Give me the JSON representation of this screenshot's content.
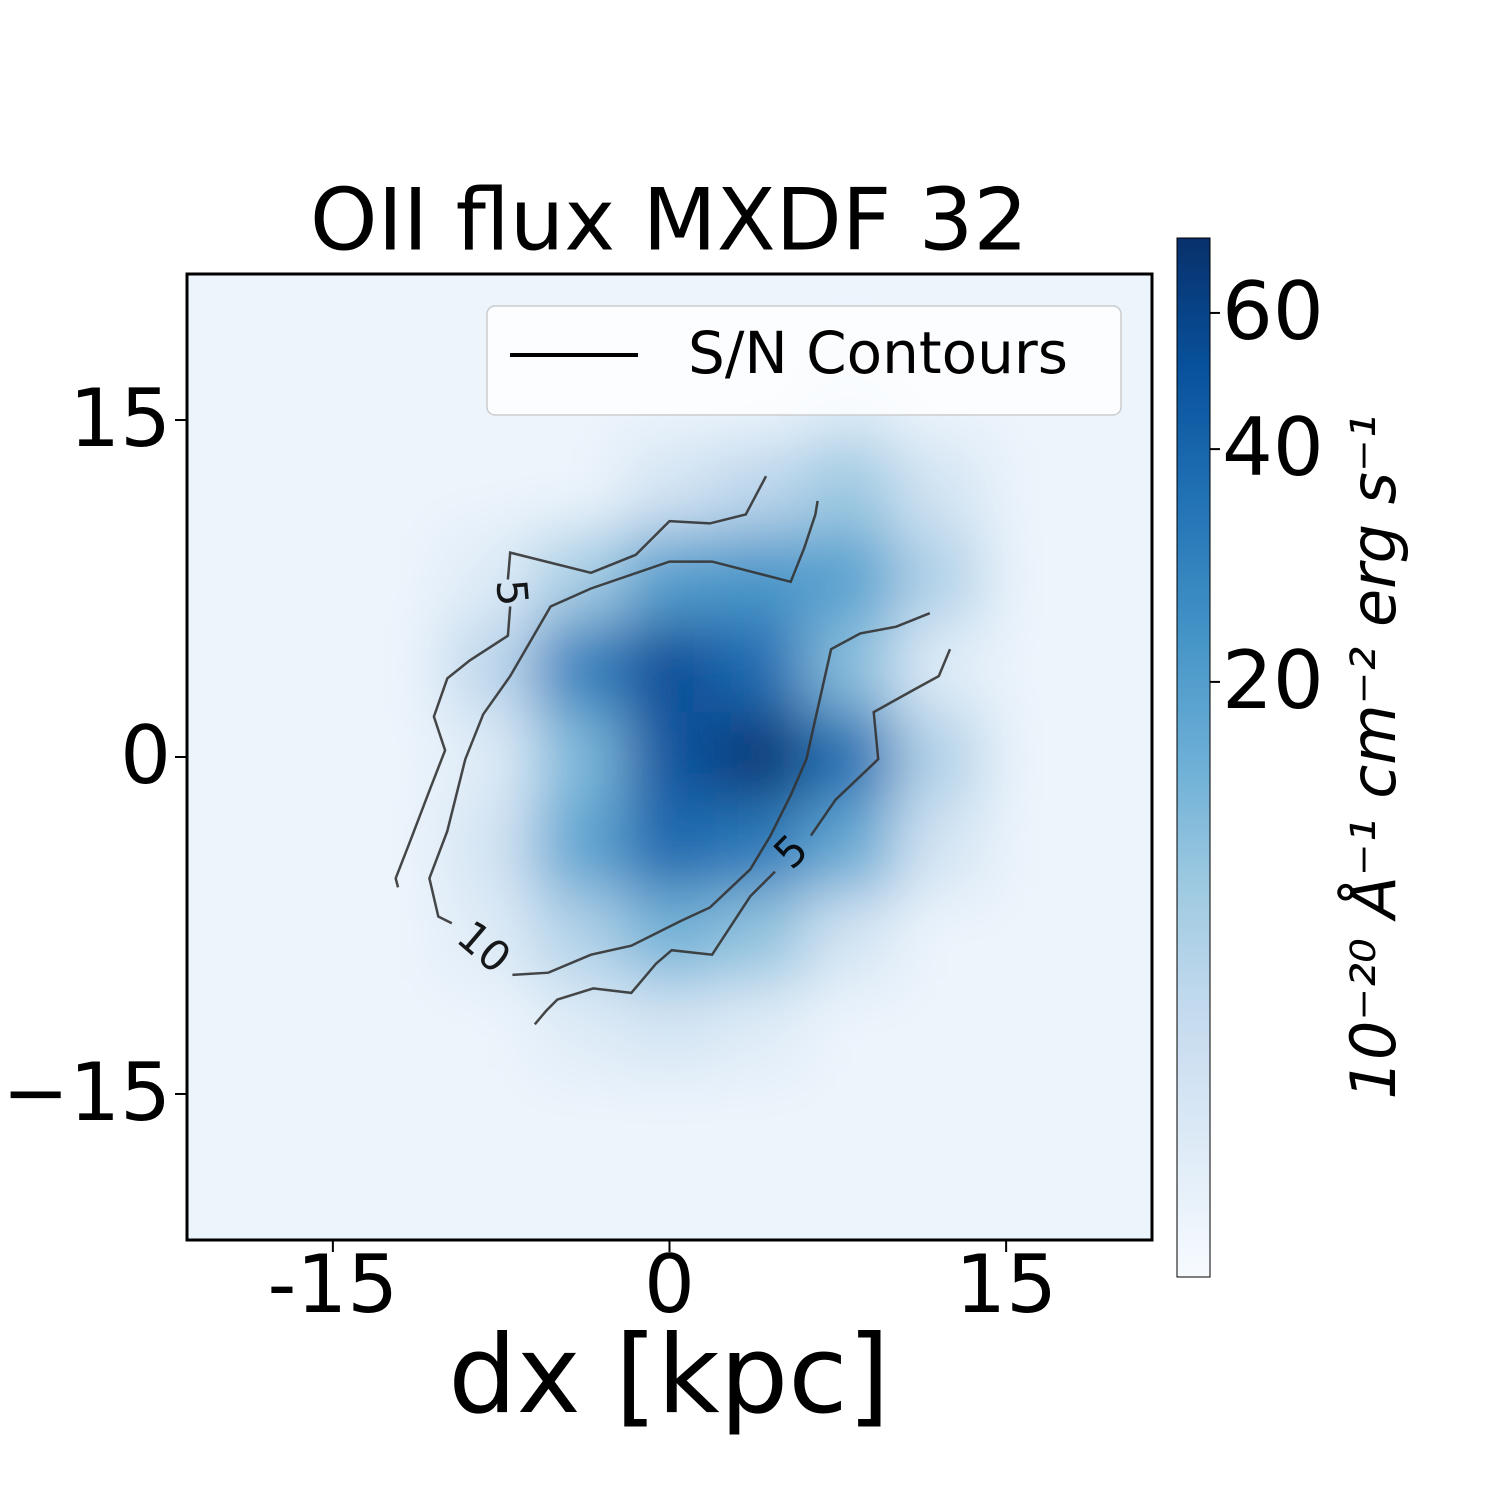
{
  "chart_data": {
    "type": "heatmap",
    "title": "OII flux MXDF 32",
    "x_label": "dx [kpc]",
    "colorbar_label": "10⁻²⁰ Å⁻¹ cm⁻² erg s⁻¹",
    "x": [
      -20,
      -16,
      -12,
      -8,
      -4,
      0,
      4,
      8,
      12,
      16,
      20
    ],
    "y": [
      20,
      16,
      12,
      8,
      4,
      0,
      -4,
      -8,
      -12,
      -16,
      -20
    ],
    "z": [
      [
        4,
        4,
        4,
        4,
        4,
        4,
        4,
        4,
        4,
        4,
        4
      ],
      [
        4,
        4,
        4,
        4,
        4,
        4,
        4,
        5,
        4,
        4,
        4
      ],
      [
        4,
        4,
        4,
        4,
        4,
        6,
        8,
        11,
        6,
        4,
        4
      ],
      [
        4,
        4,
        4,
        5,
        10,
        20,
        22,
        19,
        9,
        4,
        4
      ],
      [
        4,
        4,
        4,
        8,
        29,
        53,
        37,
        13,
        5,
        4,
        4
      ],
      [
        4,
        4,
        4,
        5,
        14,
        49,
        69,
        36,
        9,
        4,
        4
      ],
      [
        4,
        4,
        4,
        6,
        18,
        38,
        31,
        17,
        6,
        4,
        4
      ],
      [
        4,
        4,
        4,
        5,
        9,
        15,
        12,
        6,
        4,
        4,
        4
      ],
      [
        4,
        4,
        4,
        4,
        5,
        6,
        5,
        4,
        4,
        4,
        4
      ],
      [
        4,
        4,
        4,
        4,
        4,
        4,
        4,
        4,
        4,
        4,
        4
      ],
      [
        4,
        4,
        4,
        4,
        4,
        4,
        4,
        4,
        4,
        4,
        4
      ]
    ],
    "xlim": [
      -21.5,
      21.5
    ],
    "ylim": [
      -21.5,
      21.5
    ],
    "xticks": [
      -15,
      0,
      15
    ],
    "yticks": [
      15,
      0,
      {
        "value": -15,
        "label": "−15"
      }
    ],
    "colormap": [
      "#f7fbff",
      "#deebf7",
      "#c6dbef",
      "#9ecae1",
      "#6baed6",
      "#4292c6",
      "#2171b5",
      "#08519c",
      "#08306b"
    ],
    "color_scale": "log",
    "clim": [
      3.4,
      75
    ],
    "cticks": [
      20,
      40,
      60
    ],
    "contour_color": "#333333",
    "contours": [
      {
        "level": 5,
        "x": [
          4.3,
          3.4,
          1.8,
          0.0,
          -1.5,
          -3.5,
          -7.1,
          -7.2,
          null,
          -7.1,
          -7.2,
          -8.9,
          -9.9,
          -10.5,
          -10.0,
          -10.7,
          -11.5,
          -12.2,
          -12.1
        ],
        "y": [
          12.5,
          10.8,
          10.4,
          10.5,
          9.0,
          8.2,
          9.1,
          7.9,
          null,
          6.7,
          5.4,
          4.3,
          3.5,
          1.8,
          0.3,
          -1.5,
          -3.6,
          -5.4,
          -5.8
        ]
      },
      {
        "level": 5,
        "x": [
          12.5,
          12.0,
          10.9,
          9.1,
          9.3,
          7.4,
          6.3,
          null,
          4.7,
          3.6,
          1.9,
          0.1,
          -0.6,
          -1.7,
          -3.4,
          -5.0,
          -5.5,
          -6.0
        ],
        "y": [
          4.8,
          3.6,
          3.0,
          2.0,
          -0.1,
          -1.9,
          -3.5,
          null,
          -5.1,
          -6.2,
          -8.8,
          -8.6,
          -9.2,
          -10.5,
          -10.3,
          -10.8,
          -11.3,
          -11.9
        ]
      },
      {
        "level": 10,
        "x": [
          6.6,
          6.5,
          6.0,
          5.4,
          1.9,
          0.0,
          -3.5,
          -5.3,
          -7.1,
          -8.3,
          -9.1,
          -9.9,
          -10.7,
          -10.3,
          -9.7,
          null,
          -7.0,
          -5.4,
          -3.5,
          -1.7,
          0.5,
          1.8,
          3.6,
          4.5,
          5.4,
          6.1,
          6.5,
          7.2,
          8.5,
          10.1,
          11.6
        ],
        "y": [
          11.4,
          10.8,
          9.3,
          7.8,
          8.7,
          8.7,
          7.5,
          6.7,
          3.6,
          1.9,
          -0.1,
          -3.3,
          -5.4,
          -7.1,
          -7.4,
          null,
          -9.7,
          -9.6,
          -8.8,
          -8.4,
          -7.3,
          -6.7,
          -5.0,
          -3.5,
          -1.7,
          -0.1,
          1.7,
          4.8,
          5.5,
          5.8,
          6.4
        ]
      }
    ],
    "legend": {
      "label": "S/N Contours",
      "loc": "upper right",
      "color": "#000000"
    }
  }
}
